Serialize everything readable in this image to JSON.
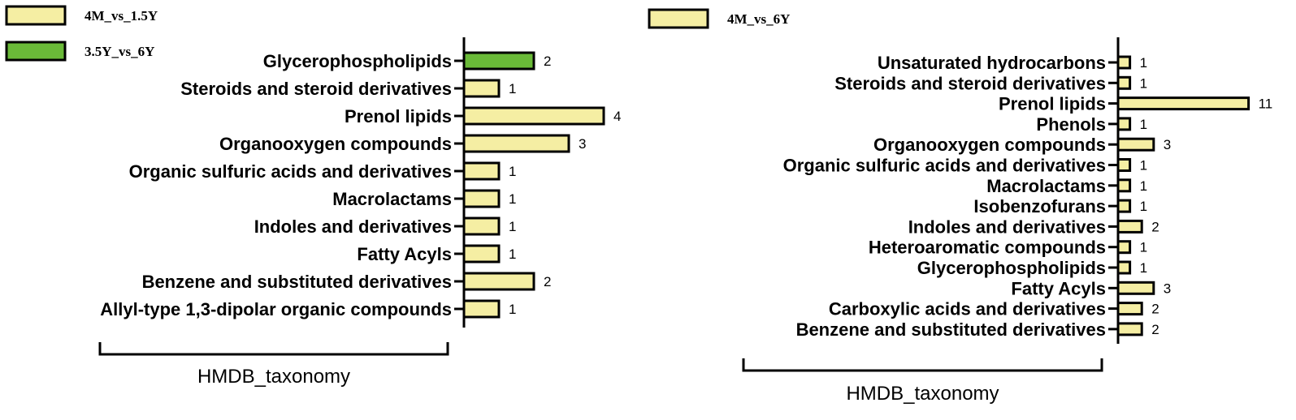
{
  "colors": {
    "pale_yellow": "#f5eea3",
    "green": "#6aba38",
    "stroke": "#000000"
  },
  "chart_data": [
    {
      "type": "bar",
      "orientation": "horizontal",
      "legend": [
        {
          "name": "4M_vs_1.5Y",
          "color": "#f5eea3"
        },
        {
          "name": "3.5Y_vs_6Y",
          "color": "#6aba38"
        }
      ],
      "group_label": "HMDB_taxonomy",
      "categories": [
        "Glycerophospholipids",
        "Steroids and steroid derivatives",
        "Prenol lipids",
        "Organooxygen compounds",
        "Organic sulfuric acids and derivatives",
        "Macrolactams",
        "Indoles and derivatives",
        "Fatty Acyls",
        "Benzene and substituted derivatives",
        "Allyl-type 1,3-dipolar organic compounds"
      ],
      "values": [
        2,
        1,
        4,
        3,
        1,
        1,
        1,
        1,
        2,
        1
      ],
      "value_labels": [
        "2",
        "1",
        "4",
        "3",
        "1",
        "1",
        "1",
        "1",
        "2",
        "1"
      ],
      "bar_series": [
        "3.5Y_vs_6Y",
        "4M_vs_1.5Y",
        "4M_vs_1.5Y",
        "4M_vs_1.5Y",
        "4M_vs_1.5Y",
        "4M_vs_1.5Y",
        "4M_vs_1.5Y",
        "4M_vs_1.5Y",
        "4M_vs_1.5Y",
        "4M_vs_1.5Y"
      ],
      "xlim": [
        0,
        4
      ],
      "grid": false
    },
    {
      "type": "bar",
      "orientation": "horizontal",
      "legend": [
        {
          "name": "4M_vs_6Y",
          "color": "#f5eea3"
        }
      ],
      "group_label": "HMDB_taxonomy",
      "categories": [
        "Unsaturated hydrocarbons",
        "Steroids and steroid derivatives",
        "Prenol lipids",
        "Phenols",
        "Organooxygen compounds",
        "Organic sulfuric acids and derivatives",
        "Macrolactams",
        "Isobenzofurans",
        "Indoles and derivatives",
        "Heteroaromatic compounds",
        "Glycerophospholipids",
        "Fatty Acyls",
        "Carboxylic acids and derivatives",
        "Benzene and substituted derivatives"
      ],
      "values": [
        1,
        1,
        11,
        1,
        3,
        1,
        1,
        1,
        2,
        1,
        1,
        3,
        2,
        2
      ],
      "value_labels": [
        "1",
        "1",
        "11",
        "1",
        "3",
        "1",
        "1",
        "1",
        "2",
        "1",
        "1",
        "3",
        "2",
        "2"
      ],
      "bar_series": [
        "4M_vs_6Y",
        "4M_vs_6Y",
        "4M_vs_6Y",
        "4M_vs_6Y",
        "4M_vs_6Y",
        "4M_vs_6Y",
        "4M_vs_6Y",
        "4M_vs_6Y",
        "4M_vs_6Y",
        "4M_vs_6Y",
        "4M_vs_6Y",
        "4M_vs_6Y",
        "4M_vs_6Y",
        "4M_vs_6Y"
      ],
      "xlim": [
        0,
        11
      ],
      "grid": false
    }
  ]
}
